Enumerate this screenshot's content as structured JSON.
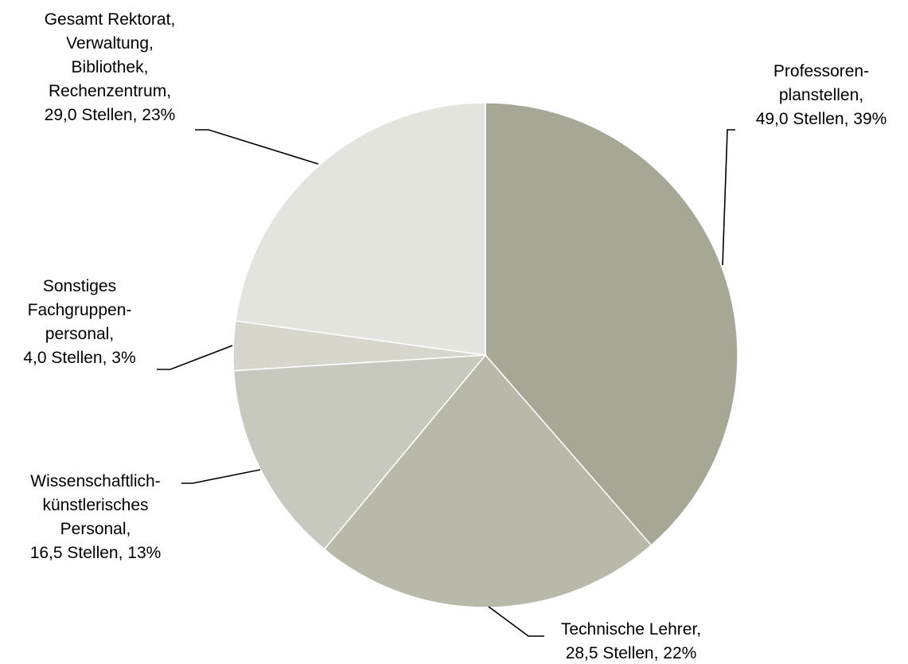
{
  "chart_data": {
    "type": "pie",
    "unit": "Stellen",
    "slices": [
      {
        "label_lines": [
          "Professoren-",
          "planstellen,",
          "49,0 Stellen, 39%"
        ],
        "value": 49.0,
        "percent": 39,
        "color": "#a6a794"
      },
      {
        "label_lines": [
          "Technische Lehrer,",
          "28,5 Stellen, 22%"
        ],
        "value": 28.5,
        "percent": 22,
        "color": "#b8b9a8"
      },
      {
        "label_lines": [
          "Wissenschaftlich-",
          "künstlerisches",
          "Personal,",
          "16,5 Stellen, 13%"
        ],
        "value": 16.5,
        "percent": 13,
        "color": "#c8c9be"
      },
      {
        "label_lines": [
          "Sonstiges",
          "Fachgruppen-",
          "personal,",
          "4,0 Stellen, 3%"
        ],
        "value": 4.0,
        "percent": 3,
        "color": "#d6d6cd"
      },
      {
        "label_lines": [
          "Gesamt Rektorat,",
          "Verwaltung,",
          "Bibliothek,",
          "Rechenzentrum,",
          "29,0 Stellen, 23%"
        ],
        "value": 29.0,
        "percent": 23,
        "color": "#e4e4de"
      }
    ]
  }
}
